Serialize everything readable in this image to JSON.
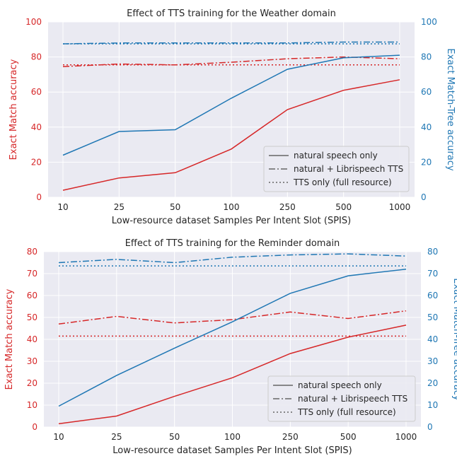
{
  "colors": {
    "red": "#d62728",
    "blue": "#1f77b4",
    "panel_bg": "#eaeaf2",
    "grid": "#ffffff",
    "text": "#262626"
  },
  "legend_entries": [
    {
      "label": "natural speech only",
      "style": "solid"
    },
    {
      "label": "natural + Librispeech TTS",
      "style": "dashdot"
    },
    {
      "label": "TTS only (full resource)",
      "style": "dotted"
    }
  ],
  "chart_data": [
    {
      "type": "line",
      "title": "Effect of TTS training for the Weather domain",
      "xlabel": "Low-resource dataset Samples Per Intent Slot (SPIS)",
      "ylabel_left": "Exact Match accuracy",
      "ylabel_right": "Exact Match-Tree accuracy",
      "x": [
        "10",
        "25",
        "50",
        "100",
        "250",
        "500",
        "1000"
      ],
      "ylim": [
        0,
        100
      ],
      "yticks": [
        "0",
        "20",
        "40",
        "60",
        "80",
        "100"
      ],
      "grid": true,
      "legend_position": "lower-right",
      "series": [
        {
          "axis": "left",
          "color": "red",
          "style": "solid",
          "values": [
            4,
            11,
            14,
            27.5,
            50,
            61,
            67
          ]
        },
        {
          "axis": "left",
          "color": "red",
          "style": "dashdot",
          "values": [
            74.5,
            76,
            75.5,
            77,
            79,
            80,
            79
          ]
        },
        {
          "axis": "left",
          "color": "red",
          "style": "dotted",
          "values": [
            75.5,
            75.5,
            75.5,
            75.5,
            75.5,
            75.5,
            75.5
          ]
        },
        {
          "axis": "right",
          "color": "blue",
          "style": "solid",
          "values": [
            24,
            37.5,
            38.5,
            56.5,
            73,
            79.5,
            81
          ]
        },
        {
          "axis": "right",
          "color": "blue",
          "style": "dashdot",
          "values": [
            87.5,
            88,
            88,
            88,
            88,
            88.5,
            88.5
          ]
        },
        {
          "axis": "right",
          "color": "blue",
          "style": "dotted",
          "values": [
            87.5,
            87.5,
            87.5,
            87.5,
            87.5,
            87.5,
            87.5
          ]
        }
      ]
    },
    {
      "type": "line",
      "title": "Effect of TTS training for the Reminder domain",
      "xlabel": "Low-resource dataset Samples Per Intent Slot (SPIS)",
      "ylabel_left": "Exact Match accuracy",
      "ylabel_right": "Exact Match-Tree accuracy",
      "x": [
        "10",
        "25",
        "50",
        "100",
        "250",
        "500",
        "1000"
      ],
      "ylim": [
        0,
        80
      ],
      "yticks": [
        "0",
        "10",
        "20",
        "30",
        "40",
        "50",
        "60",
        "70",
        "80"
      ],
      "grid": true,
      "legend_position": "lower-right",
      "series": [
        {
          "axis": "left",
          "color": "red",
          "style": "solid",
          "values": [
            1.5,
            5,
            14,
            22.5,
            33.5,
            41,
            46.5
          ]
        },
        {
          "axis": "left",
          "color": "red",
          "style": "dashdot",
          "values": [
            47,
            50.5,
            47.5,
            49,
            52.5,
            49.5,
            53
          ]
        },
        {
          "axis": "left",
          "color": "red",
          "style": "dotted",
          "values": [
            41.5,
            41.5,
            41.5,
            41.5,
            41.5,
            41.5,
            41.5
          ]
        },
        {
          "axis": "right",
          "color": "blue",
          "style": "solid",
          "values": [
            9.5,
            23.5,
            36,
            48,
            61,
            69,
            72
          ]
        },
        {
          "axis": "right",
          "color": "blue",
          "style": "dashdot",
          "values": [
            75,
            76.5,
            75,
            77.5,
            78.5,
            79,
            78
          ]
        },
        {
          "axis": "right",
          "color": "blue",
          "style": "dotted",
          "values": [
            73.5,
            73.5,
            73.5,
            73.5,
            73.5,
            73.5,
            73.5
          ]
        }
      ]
    }
  ]
}
